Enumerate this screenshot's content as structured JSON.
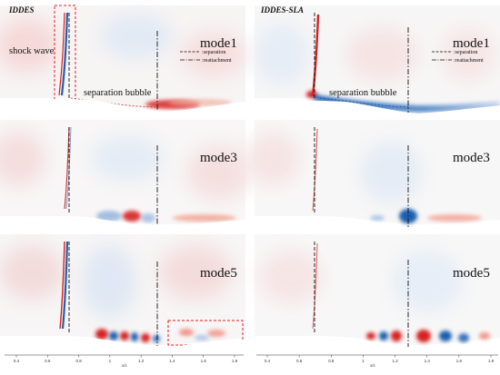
{
  "columns": [
    {
      "title": "IDDES",
      "panels": [
        {
          "mode": "mode1"
        },
        {
          "mode": "mode3"
        },
        {
          "mode": "mode5"
        }
      ]
    },
    {
      "title": "IDDES-SLA",
      "panels": [
        {
          "mode": "mode1"
        },
        {
          "mode": "mode3"
        },
        {
          "mode": "mode5"
        }
      ]
    }
  ],
  "annotations": {
    "shock_wave": "shock wave",
    "separation_bubble": "separation bubble"
  },
  "legend": {
    "separation": ":separation",
    "reattachment": ":reattachment"
  },
  "x_axis": {
    "label": "x/c",
    "ticks": [
      "0.4",
      "0.6",
      "0.8",
      "1",
      "1.2",
      "1.4",
      "1.6",
      "1.8"
    ]
  },
  "colors": {
    "positive": "#d62020",
    "negative": "#1f5fae",
    "highlight_box": "#e02020"
  }
}
